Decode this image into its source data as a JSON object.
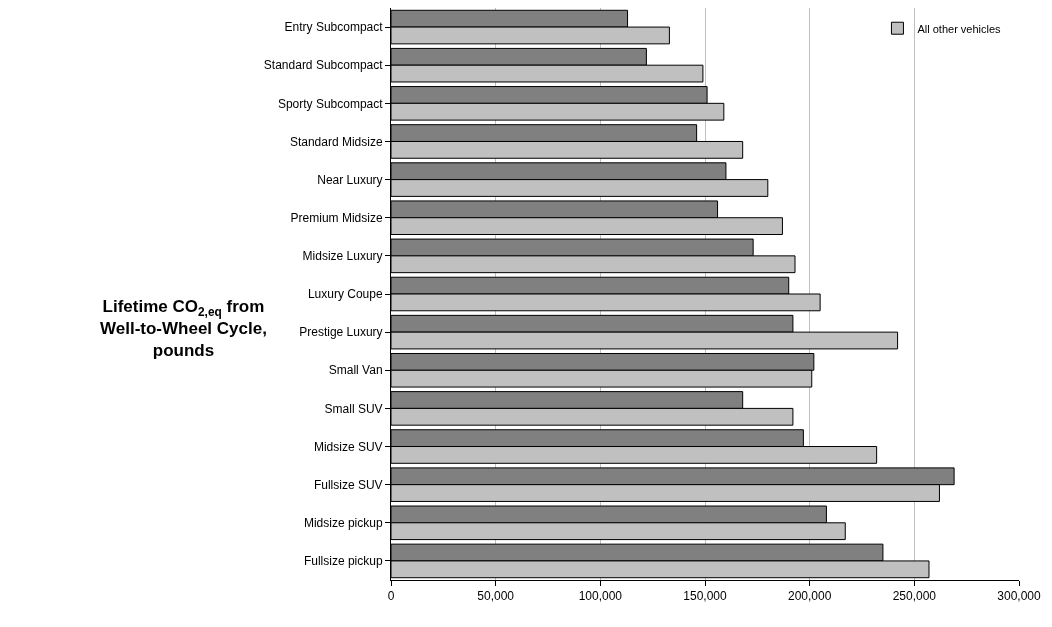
{
  "chart_data": {
    "type": "bar",
    "orientation": "horizontal",
    "ylabel": "Lifetime CO$_{2,eq}$ from\nWell-to-Wheel Cycle,\npounds",
    "categories": [
      "Entry Subcompact",
      "Standard Subcompact",
      "Sporty Subcompact",
      "Standard Midsize",
      "Near Luxury",
      "Premium Midsize",
      "Midsize Luxury",
      "Luxury Coupe",
      "Prestige Luxury",
      "Small Van",
      "Small SUV",
      "Midsize SUV",
      "Fullsize SUV",
      "Midsize pickup",
      "Fullsize pickup"
    ],
    "series": [
      {
        "color": "#808080",
        "values": [
          113000,
          122000,
          151000,
          146000,
          160000,
          156000,
          173000,
          190000,
          192000,
          202000,
          168000,
          197000,
          269000,
          208000,
          235000
        ]
      },
      {
        "name": "All other vehicles",
        "color": "#c0c0c0",
        "values": [
          133000,
          149000,
          159000,
          168000,
          180000,
          187000,
          193000,
          205000,
          242000,
          201000,
          192000,
          232000,
          262000,
          217000,
          257000
        ]
      }
    ],
    "xlim": [
      0,
      300000
    ],
    "xticks": [
      0,
      {
        "value": 50000,
        "label": "50,000"
      },
      {
        "value": 100000,
        "label": "100,000"
      },
      {
        "value": 150000,
        "label": "150,000"
      },
      {
        "value": 200000,
        "label": "200,000"
      },
      {
        "value": 250000,
        "label": "250,000"
      },
      {
        "value": 300000,
        "label": "300,000"
      }
    ],
    "grid": "x",
    "legend": "top right"
  }
}
